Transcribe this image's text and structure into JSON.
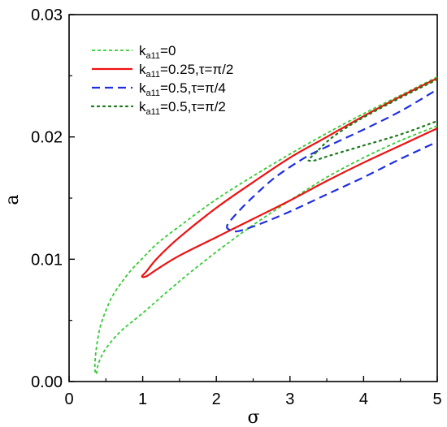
{
  "chart_data": {
    "type": "line",
    "xlabel": "σ",
    "ylabel": "a",
    "xlim": [
      0,
      5
    ],
    "ylim": [
      0,
      0.03
    ],
    "xticks": [
      "0",
      "1",
      "2",
      "3",
      "4",
      "5"
    ],
    "yticks": [
      "0.00",
      "0.01",
      "0.02",
      "0.03"
    ],
    "grid": false,
    "legend_position": "top-left",
    "series": [
      {
        "name_prefix": "k",
        "name_sub": "a11",
        "name_suffix": "=0",
        "color": "#33cc33",
        "dash": "dash-short",
        "points": [
          [
            5.0,
            0.0249
          ],
          [
            4.5,
            0.0234
          ],
          [
            4.0,
            0.0219
          ],
          [
            3.5,
            0.0203
          ],
          [
            3.0,
            0.0186
          ],
          [
            2.5,
            0.0168
          ],
          [
            2.0,
            0.0149
          ],
          [
            1.5,
            0.0127
          ],
          [
            1.2,
            0.0113
          ],
          [
            1.0,
            0.0101
          ],
          [
            0.8,
            0.0088
          ],
          [
            0.6,
            0.0071
          ],
          [
            0.5,
            0.0058
          ],
          [
            0.42,
            0.0044
          ],
          [
            0.37,
            0.0027
          ],
          [
            0.35,
            0.0012
          ],
          [
            0.37,
            0.0006
          ],
          [
            0.4,
            0.0015
          ],
          [
            0.5,
            0.0027
          ],
          [
            0.7,
            0.0041
          ],
          [
            1.0,
            0.0056
          ],
          [
            1.5,
            0.0082
          ],
          [
            2.0,
            0.0106
          ],
          [
            2.5,
            0.0128
          ],
          [
            3.0,
            0.0148
          ],
          [
            3.5,
            0.0167
          ],
          [
            4.0,
            0.0183
          ],
          [
            4.5,
            0.0197
          ],
          [
            5.0,
            0.0209
          ]
        ]
      },
      {
        "name_prefix": "k",
        "name_sub": "a11",
        "name_suffix": "=0.25,τ=π/2",
        "color": "#ee1111",
        "dash": "solid",
        "points": [
          [
            5.0,
            0.0248
          ],
          [
            4.5,
            0.0233
          ],
          [
            4.0,
            0.0217
          ],
          [
            3.5,
            0.02
          ],
          [
            3.0,
            0.0183
          ],
          [
            2.5,
            0.0163
          ],
          [
            2.0,
            0.0142
          ],
          [
            1.5,
            0.0118
          ],
          [
            1.2,
            0.0101
          ],
          [
            1.05,
            0.009
          ],
          [
            0.99,
            0.0086
          ],
          [
            1.05,
            0.0086
          ],
          [
            1.2,
            0.0092
          ],
          [
            1.5,
            0.0103
          ],
          [
            2.0,
            0.0118
          ],
          [
            2.2,
            0.0124
          ],
          [
            2.5,
            0.0133
          ],
          [
            3.0,
            0.0148
          ],
          [
            3.5,
            0.0164
          ],
          [
            4.0,
            0.0179
          ],
          [
            4.5,
            0.0193
          ],
          [
            5.0,
            0.0207
          ]
        ]
      },
      {
        "name_prefix": "k",
        "name_sub": "a11",
        "name_suffix": "=0.5,τ=π/4",
        "color": "#1e2ee0",
        "dash": "dash-long",
        "points": [
          [
            4.95,
            0.0237
          ],
          [
            4.5,
            0.0221
          ],
          [
            4.0,
            0.0206
          ],
          [
            3.5,
            0.0192
          ],
          [
            3.2,
            0.0183
          ],
          [
            2.8,
            0.0167
          ],
          [
            2.5,
            0.0151
          ],
          [
            2.3,
            0.0139
          ],
          [
            2.15,
            0.0128
          ],
          [
            2.18,
            0.0124
          ],
          [
            2.3,
            0.0123
          ],
          [
            2.6,
            0.0129
          ],
          [
            3.0,
            0.0139
          ],
          [
            3.5,
            0.0153
          ],
          [
            4.0,
            0.0167
          ],
          [
            4.5,
            0.0182
          ],
          [
            5.0,
            0.0196
          ]
        ]
      },
      {
        "name_prefix": "k",
        "name_sub": "a11",
        "name_suffix": "=0.5,τ=π/2",
        "color": "#1a7a1a",
        "dash": "dot",
        "points": [
          [
            5.0,
            0.0247
          ],
          [
            4.5,
            0.0232
          ],
          [
            4.0,
            0.0216
          ],
          [
            3.7,
            0.0205
          ],
          [
            3.5,
            0.0196
          ],
          [
            3.35,
            0.0187
          ],
          [
            3.25,
            0.0181
          ],
          [
            3.35,
            0.0181
          ],
          [
            3.5,
            0.0184
          ],
          [
            4.0,
            0.0193
          ],
          [
            4.5,
            0.0202
          ],
          [
            5.0,
            0.0213
          ]
        ]
      }
    ]
  }
}
